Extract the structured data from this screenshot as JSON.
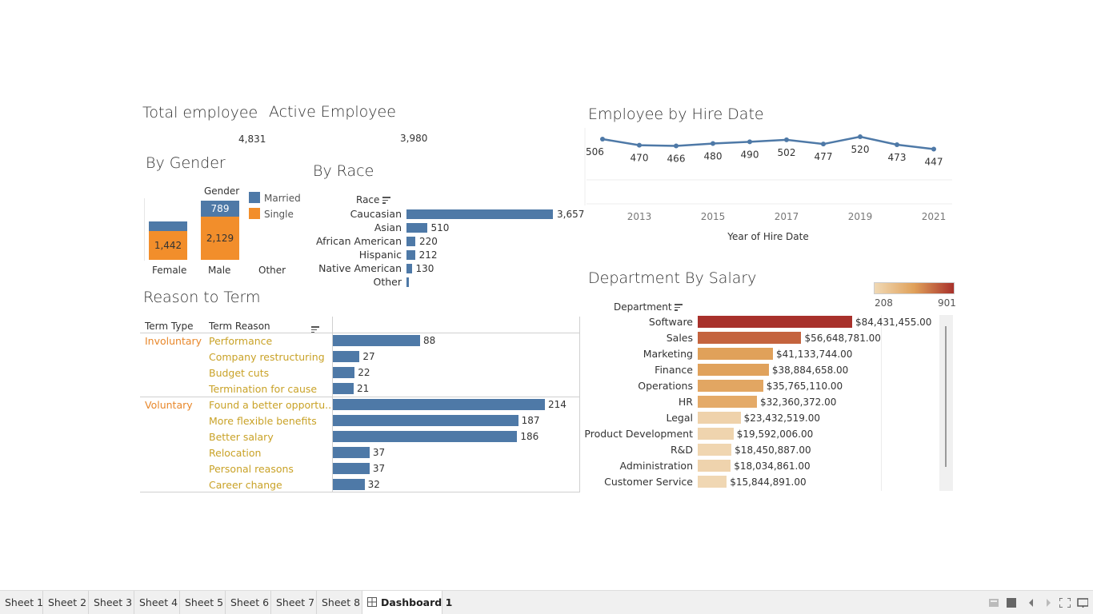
{
  "kpi": {
    "total_title": "Total employee",
    "total_value": "4,831",
    "active_title": "Active Employee",
    "active_value": "3,980"
  },
  "gender": {
    "title": "By Gender",
    "header": "Gender",
    "columns": [
      "Female",
      "Male",
      "Other"
    ],
    "legend": [
      {
        "label": "Married",
        "color": "#4e79a7"
      },
      {
        "label": "Single",
        "color": "#f28e2b"
      }
    ],
    "female": {
      "married": 200,
      "single": 1442,
      "single_label": "1,442"
    },
    "male": {
      "married": 789,
      "married_label": "789",
      "single": 2129,
      "single_label": "2,129"
    }
  },
  "race": {
    "title": "By Race",
    "header": "Race",
    "rows": [
      {
        "label": "Caucasian",
        "value": 3657,
        "value_label": "3,657"
      },
      {
        "label": "Asian",
        "value": 510,
        "value_label": "510"
      },
      {
        "label": "African American",
        "value": 220,
        "value_label": "220"
      },
      {
        "label": "Hispanic",
        "value": 212,
        "value_label": "212"
      },
      {
        "label": "Native American",
        "value": 130,
        "value_label": "130"
      },
      {
        "label": "Other",
        "value": 60,
        "value_label": ""
      }
    ]
  },
  "hire": {
    "title": "Employee by Hire Date",
    "xlabel": "Year of Hire Date",
    "ticks": [
      "2013",
      "2015",
      "2017",
      "2019",
      "2021"
    ]
  },
  "term": {
    "title": "Reason to Term",
    "header_type": "Term Type",
    "header_reason": "Term Reason",
    "groups": [
      {
        "type": "Involuntary",
        "rows": [
          {
            "reason": "Performance",
            "value": 88,
            "value_label": "88"
          },
          {
            "reason": "Company restructuring",
            "value": 27,
            "value_label": "27"
          },
          {
            "reason": "Budget cuts",
            "value": 22,
            "value_label": "22"
          },
          {
            "reason": "Termination for cause",
            "value": 21,
            "value_label": "21"
          }
        ]
      },
      {
        "type": "Voluntary",
        "rows": [
          {
            "reason": "Found a better opportu..",
            "value": 214,
            "value_label": "214"
          },
          {
            "reason": "More flexible benefits",
            "value": 187,
            "value_label": "187"
          },
          {
            "reason": "Better salary",
            "value": 186,
            "value_label": "186"
          },
          {
            "reason": "Relocation",
            "value": 37,
            "value_label": "37"
          },
          {
            "reason": "Personal reasons",
            "value": 37,
            "value_label": "37"
          },
          {
            "reason": "Career change",
            "value": 32,
            "value_label": "32"
          }
        ]
      }
    ]
  },
  "dept": {
    "title": "Department By Salary",
    "header": "Department",
    "legend_min": "208",
    "legend_max": "901",
    "color_low": "#f0d9b5",
    "color_mid": "#e0a15a",
    "color_high": "#a8312b",
    "rows": [
      {
        "label": "Software",
        "value": 84431455,
        "value_label": "$84,431,455.00",
        "color": "#a8312b"
      },
      {
        "label": "Sales",
        "value": 56648781,
        "value_label": "$56,648,781.00",
        "color": "#c4633e"
      },
      {
        "label": "Marketing",
        "value": 41133744,
        "value_label": "$41,133,744.00",
        "color": "#e0a15a"
      },
      {
        "label": "Finance",
        "value": 38884658,
        "value_label": "$38,884,658.00",
        "color": "#e0a25c"
      },
      {
        "label": "Operations",
        "value": 35765110,
        "value_label": "$35,765,110.00",
        "color": "#e2a662"
      },
      {
        "label": "HR",
        "value": 32360372,
        "value_label": "$32,360,372.00",
        "color": "#e4aa68"
      },
      {
        "label": "Legal",
        "value": 23432519,
        "value_label": "$23,432,519.00",
        "color": "#efd2ab"
      },
      {
        "label": "Product Development",
        "value": 19592006,
        "value_label": "$19,592,006.00",
        "color": "#efd4ae"
      },
      {
        "label": "R&D",
        "value": 18450887,
        "value_label": "$18,450,887.00",
        "color": "#f0d6b1"
      },
      {
        "label": "Administration",
        "value": 18034861,
        "value_label": "$18,034,861.00",
        "color": "#efd3ad"
      },
      {
        "label": "Customer Service",
        "value": 15844891,
        "value_label": "$15,844,891.00",
        "color": "#f0d7b3"
      }
    ]
  },
  "chart_data": {
    "type": "line",
    "x": [
      2012,
      2013,
      2014,
      2015,
      2016,
      2017,
      2018,
      2019,
      2020,
      2021
    ],
    "series": [
      {
        "values": [
          506,
          470,
          466,
          480,
          490,
          502,
          477,
          520,
          473,
          447
        ]
      }
    ],
    "title": "Employee by Hire Date",
    "xlabel": "Year of Hire Date",
    "ylabel": "",
    "color": "#4e79a7"
  },
  "tabs": [
    "Sheet 1",
    "Sheet 2",
    "Sheet 3",
    "Sheet 4",
    "Sheet 5",
    "Sheet 6",
    "Sheet 7",
    "Sheet 8",
    "Dashboard 1"
  ],
  "active_tab": "Dashboard 1"
}
